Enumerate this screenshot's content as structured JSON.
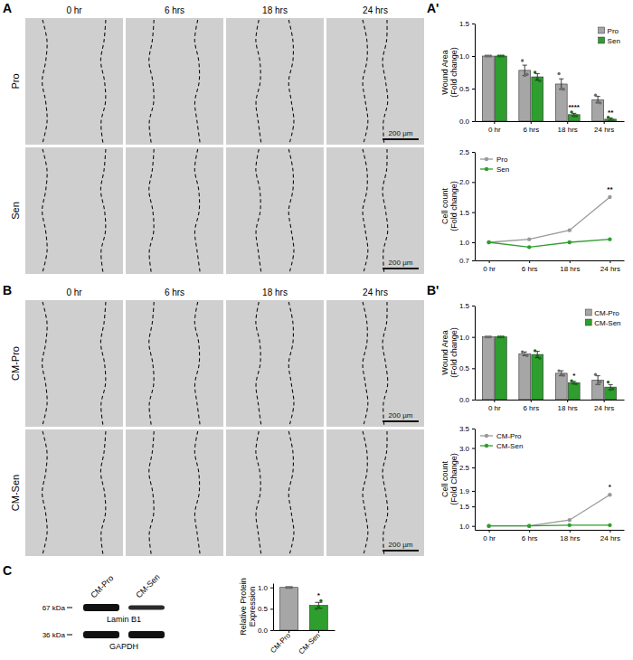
{
  "panel_labels": [
    "A",
    "A'",
    "B",
    "B'",
    "C"
  ],
  "image_panels": [
    {
      "rows": [
        "Pro",
        "Sen"
      ],
      "columns": [
        "0 hr",
        "6 hrs",
        "18 hrs",
        "24 hrs"
      ],
      "scale_bar": "200 µm"
    },
    {
      "rows": [
        "CM-Pro",
        "CM-Sen"
      ],
      "columns": [
        "0 hr",
        "6 hrs",
        "18 hrs",
        "24 hrs"
      ],
      "scale_bar": "200 µm"
    }
  ],
  "blot": {
    "lanes": [
      "CM-Pro",
      "CM-Sen"
    ],
    "bands": [
      {
        "name": "Lamin B1",
        "size": "67 kDa"
      },
      {
        "name": "GAPDH",
        "size": "36 kDa"
      }
    ]
  },
  "chart_data": [
    {
      "type": "bar",
      "y_label": "Wound Area (Fold change)",
      "categories": [
        "0 hr",
        "6 hrs",
        "18 hrs",
        "24 hrs"
      ],
      "series": [
        {
          "name": "Pro",
          "color": "#a6a6a6",
          "values": [
            1,
            0.78,
            0.57,
            0.33
          ],
          "errors": [
            0,
            0.08,
            0.08,
            0.05
          ],
          "points": [
            [
              1,
              1,
              1
            ],
            [
              0.93,
              0.7,
              0.72
            ],
            [
              0.73,
              0.5,
              0.49
            ],
            [
              0.4,
              0.3,
              0.28
            ]
          ]
        },
        {
          "name": "Sen",
          "color": "#2e9e2e",
          "values": [
            1,
            0.68,
            0.1,
            0.03
          ],
          "errors": [
            0,
            0.05,
            0.02,
            0.02
          ],
          "points": [
            [
              1,
              1,
              1
            ],
            [
              0.75,
              0.66,
              0.62
            ],
            [
              0.14,
              0.08,
              0.08
            ],
            [
              0.06,
              0.02,
              0.01
            ]
          ],
          "significance": [
            null,
            null,
            "****",
            "**"
          ]
        }
      ],
      "ylim": [
        0,
        1.5
      ],
      "yticks": [
        {
          "value": 0,
          "label": "0.0"
        },
        {
          "value": 0.5,
          "label": "0.5"
        },
        {
          "value": 1,
          "label": "1.0"
        },
        {
          "value": 1.5,
          "label": "1.5"
        }
      ],
      "legend": "top-right"
    },
    {
      "type": "line",
      "y_label": "Cell count (Fold change)",
      "categories": [
        "0 hr",
        "6 hrs",
        "18 hrs",
        "24 hrs"
      ],
      "series": [
        {
          "name": "Pro",
          "color": "#999999",
          "marker": "circle",
          "values": [
            1,
            1.05,
            1.2,
            1.75
          ],
          "significance": [
            null,
            null,
            null,
            "**"
          ]
        },
        {
          "name": "Sen",
          "color": "#2e9e2e",
          "marker": "circle",
          "values": [
            1,
            0.92,
            1.0,
            1.05
          ]
        }
      ],
      "ylim": [
        0.7,
        2.5
      ],
      "yticks": [
        0.7,
        {
          "value": 1,
          "label": "1.0"
        },
        1.5,
        {
          "value": 2,
          "label": "2.0"
        },
        2.5
      ],
      "legend": "top-left"
    },
    {
      "type": "bar",
      "y_label": "Wound Area (Fold change)",
      "categories": [
        "0 hr",
        "6 hrs",
        "18 hrs",
        "24 hrs"
      ],
      "series": [
        {
          "name": "CM-Pro",
          "color": "#a6a6a6",
          "values": [
            1,
            0.73,
            0.42,
            0.31
          ],
          "errors": [
            0,
            0.03,
            0.04,
            0.07
          ],
          "points": [
            [
              1,
              1,
              1
            ],
            [
              0.76,
              0.72,
              0.7
            ],
            [
              0.46,
              0.4,
              0.39
            ],
            [
              0.4,
              0.25,
              0.28
            ]
          ]
        },
        {
          "name": "CM-Sen",
          "color": "#2e9e2e",
          "values": [
            1,
            0.72,
            0.27,
            0.2
          ],
          "errors": [
            0,
            0.05,
            0.02,
            0.04
          ],
          "points": [
            [
              1,
              1,
              1
            ],
            [
              0.78,
              0.7,
              0.66
            ],
            [
              0.3,
              0.26,
              0.25
            ],
            [
              0.28,
              0.16,
              0.17
            ]
          ],
          "significance": [
            null,
            null,
            "*",
            null
          ]
        }
      ],
      "ylim": [
        0,
        1.5
      ],
      "yticks": [
        {
          "value": 0,
          "label": "0.0"
        },
        {
          "value": 0.5,
          "label": "0.5"
        },
        {
          "value": 1,
          "label": "1.0"
        },
        {
          "value": 1.5,
          "label": "1.5"
        }
      ],
      "legend": "top-right"
    },
    {
      "type": "line",
      "y_label": "Cell count (Fold Change)",
      "categories": [
        "0 hr",
        "6 hrs",
        "18 hrs",
        "24 hrs"
      ],
      "series": [
        {
          "name": "CM-Pro",
          "color": "#999999",
          "marker": "circle",
          "values": [
            1,
            1.0,
            1.15,
            1.8
          ],
          "significance": [
            null,
            null,
            null,
            "*"
          ]
        },
        {
          "name": "CM-Sen",
          "color": "#2e9e2e",
          "marker": "circle",
          "values": [
            1,
            1.0,
            1.02,
            1.02
          ]
        }
      ],
      "ylim": [
        0.9,
        3.5
      ],
      "yticks": [
        {
          "value": 1,
          "label": "1.0"
        },
        1.5,
        1.9,
        2.5,
        {
          "value": 3,
          "label": "3.0"
        },
        3.5
      ],
      "legend": "top-left"
    },
    {
      "type": "bar",
      "y_label": "Relative Protein Expression",
      "categories": [
        "CM-Pro",
        "CM-Sen"
      ],
      "values": [
        1,
        0.58
      ],
      "errors": [
        0,
        0.07
      ],
      "points": [
        [
          1,
          1,
          1
        ],
        [
          0.5,
          0.55,
          0.69
        ]
      ],
      "colors": [
        "#a6a6a6",
        "#2e9e2e"
      ],
      "significance": [
        null,
        "*"
      ],
      "ylim": [
        0,
        1.1
      ],
      "yticks": [
        {
          "value": 0,
          "label": "0.0"
        },
        {
          "value": 0.5,
          "label": "0.5"
        },
        {
          "value": 1,
          "label": "1.0"
        }
      ]
    }
  ]
}
